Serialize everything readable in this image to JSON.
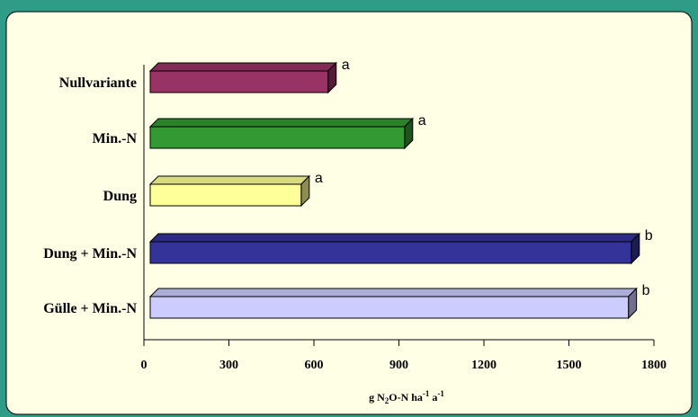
{
  "chart_data": {
    "type": "bar",
    "orientation": "horizontal",
    "three_d": true,
    "categories": [
      "Nullvariante",
      "Min.-N",
      "Dung",
      "Dung + Min.-N",
      "Gülle + Min.-N"
    ],
    "values": [
      650,
      920,
      555,
      1720,
      1710
    ],
    "significance_letters": [
      "a",
      "a",
      "a",
      "b",
      "b"
    ],
    "colors": [
      "#993366",
      "#339933",
      "#ffff99",
      "#333399",
      "#ccccff"
    ],
    "xlim": [
      0,
      1800
    ],
    "xticks": [
      0,
      300,
      600,
      900,
      1200,
      1500,
      1800
    ],
    "xlabel": {
      "base": "g N",
      "sub": "2",
      "mid": "O-N ha",
      "sup1": "-1",
      "gap": " a",
      "sup2": "-1"
    },
    "title": "",
    "legend": "none",
    "grid": false,
    "plot_background": "#ffffe6",
    "frame_background": "#2e9c86"
  }
}
